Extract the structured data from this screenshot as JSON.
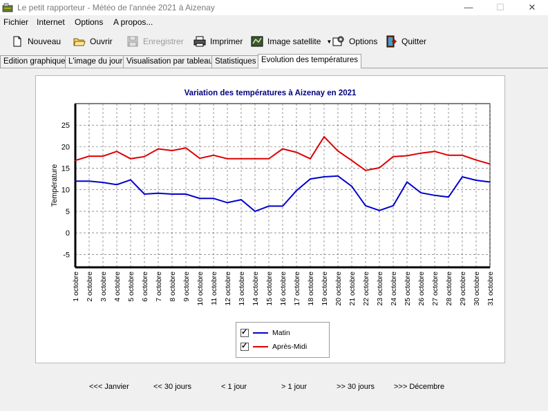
{
  "window": {
    "title": "Le petit rapporteur - Météo de l'année 2021 à Aizenay",
    "minimize": "—",
    "maximize": "☐",
    "close": "✕"
  },
  "menu": [
    "Fichier",
    "Internet",
    "Options",
    "A propos..."
  ],
  "toolbar": {
    "new": "Nouveau",
    "open": "Ouvrir",
    "save": "Enregistrer",
    "print": "Imprimer",
    "satellite": "Image satellite",
    "options": "Options",
    "quit": "Quitter"
  },
  "tabs": [
    "Edition graphique",
    "L'image du jour",
    "Visualisation par tableau",
    "Statistiques",
    "Evolution des températures"
  ],
  "colors": {
    "morning": "#0000cc",
    "afternoon": "#dd0000",
    "title": "#000080"
  },
  "chart_data": {
    "type": "line",
    "title": "Variation des températures à Aizenay en 2021",
    "ylabel": "Température",
    "ylim": [
      -8,
      30
    ],
    "yticks": [
      25,
      20,
      15,
      10,
      5,
      0,
      -5
    ],
    "grid": true,
    "legend_position": "bottom",
    "categories": [
      "1 octobre",
      "2 octobre",
      "3 octobre",
      "4 octobre",
      "5 octobre",
      "6 octobre",
      "7 octobre",
      "8 octobre",
      "9 octobre",
      "10 octobre",
      "11 octobre",
      "12 octobre",
      "13 octobre",
      "14 octobre",
      "15 octobre",
      "16 octobre",
      "17 octobre",
      "18 octobre",
      "19 octobre",
      "20 octobre",
      "21 octobre",
      "22 octobre",
      "23 octobre",
      "24 octobre",
      "25 octobre",
      "26 octobre",
      "27 octobre",
      "28 octobre",
      "29 octobre",
      "30 octobre",
      "31 octobre"
    ],
    "series": [
      {
        "name": "Matin",
        "color": "#0000cc",
        "values": [
          12,
          12,
          11.7,
          11.2,
          12.3,
          9,
          9.2,
          9,
          9,
          8,
          8,
          7,
          7.7,
          5,
          6.2,
          6.2,
          9.8,
          12.5,
          13,
          13.2,
          10.8,
          6.3,
          5.2,
          6.3,
          11.8,
          9.3,
          8.7,
          8.3,
          13,
          12.2,
          11.8
        ]
      },
      {
        "name": "Après-Midi",
        "color": "#dd0000",
        "values": [
          16.8,
          17.8,
          17.8,
          18.9,
          17.2,
          17.7,
          19.5,
          19.1,
          19.7,
          17.3,
          18,
          17.2,
          17.2,
          17.2,
          17.2,
          19.5,
          18.7,
          17.2,
          22.3,
          19,
          16.8,
          14.5,
          15.1,
          17.7,
          17.9,
          18.5,
          18.9,
          18,
          18,
          16.9,
          16
        ]
      }
    ]
  },
  "nav": [
    "<<< Janvier",
    "<< 30 jours",
    "< 1 jour",
    "> 1 jour",
    ">> 30 jours",
    ">>> Décembre"
  ]
}
